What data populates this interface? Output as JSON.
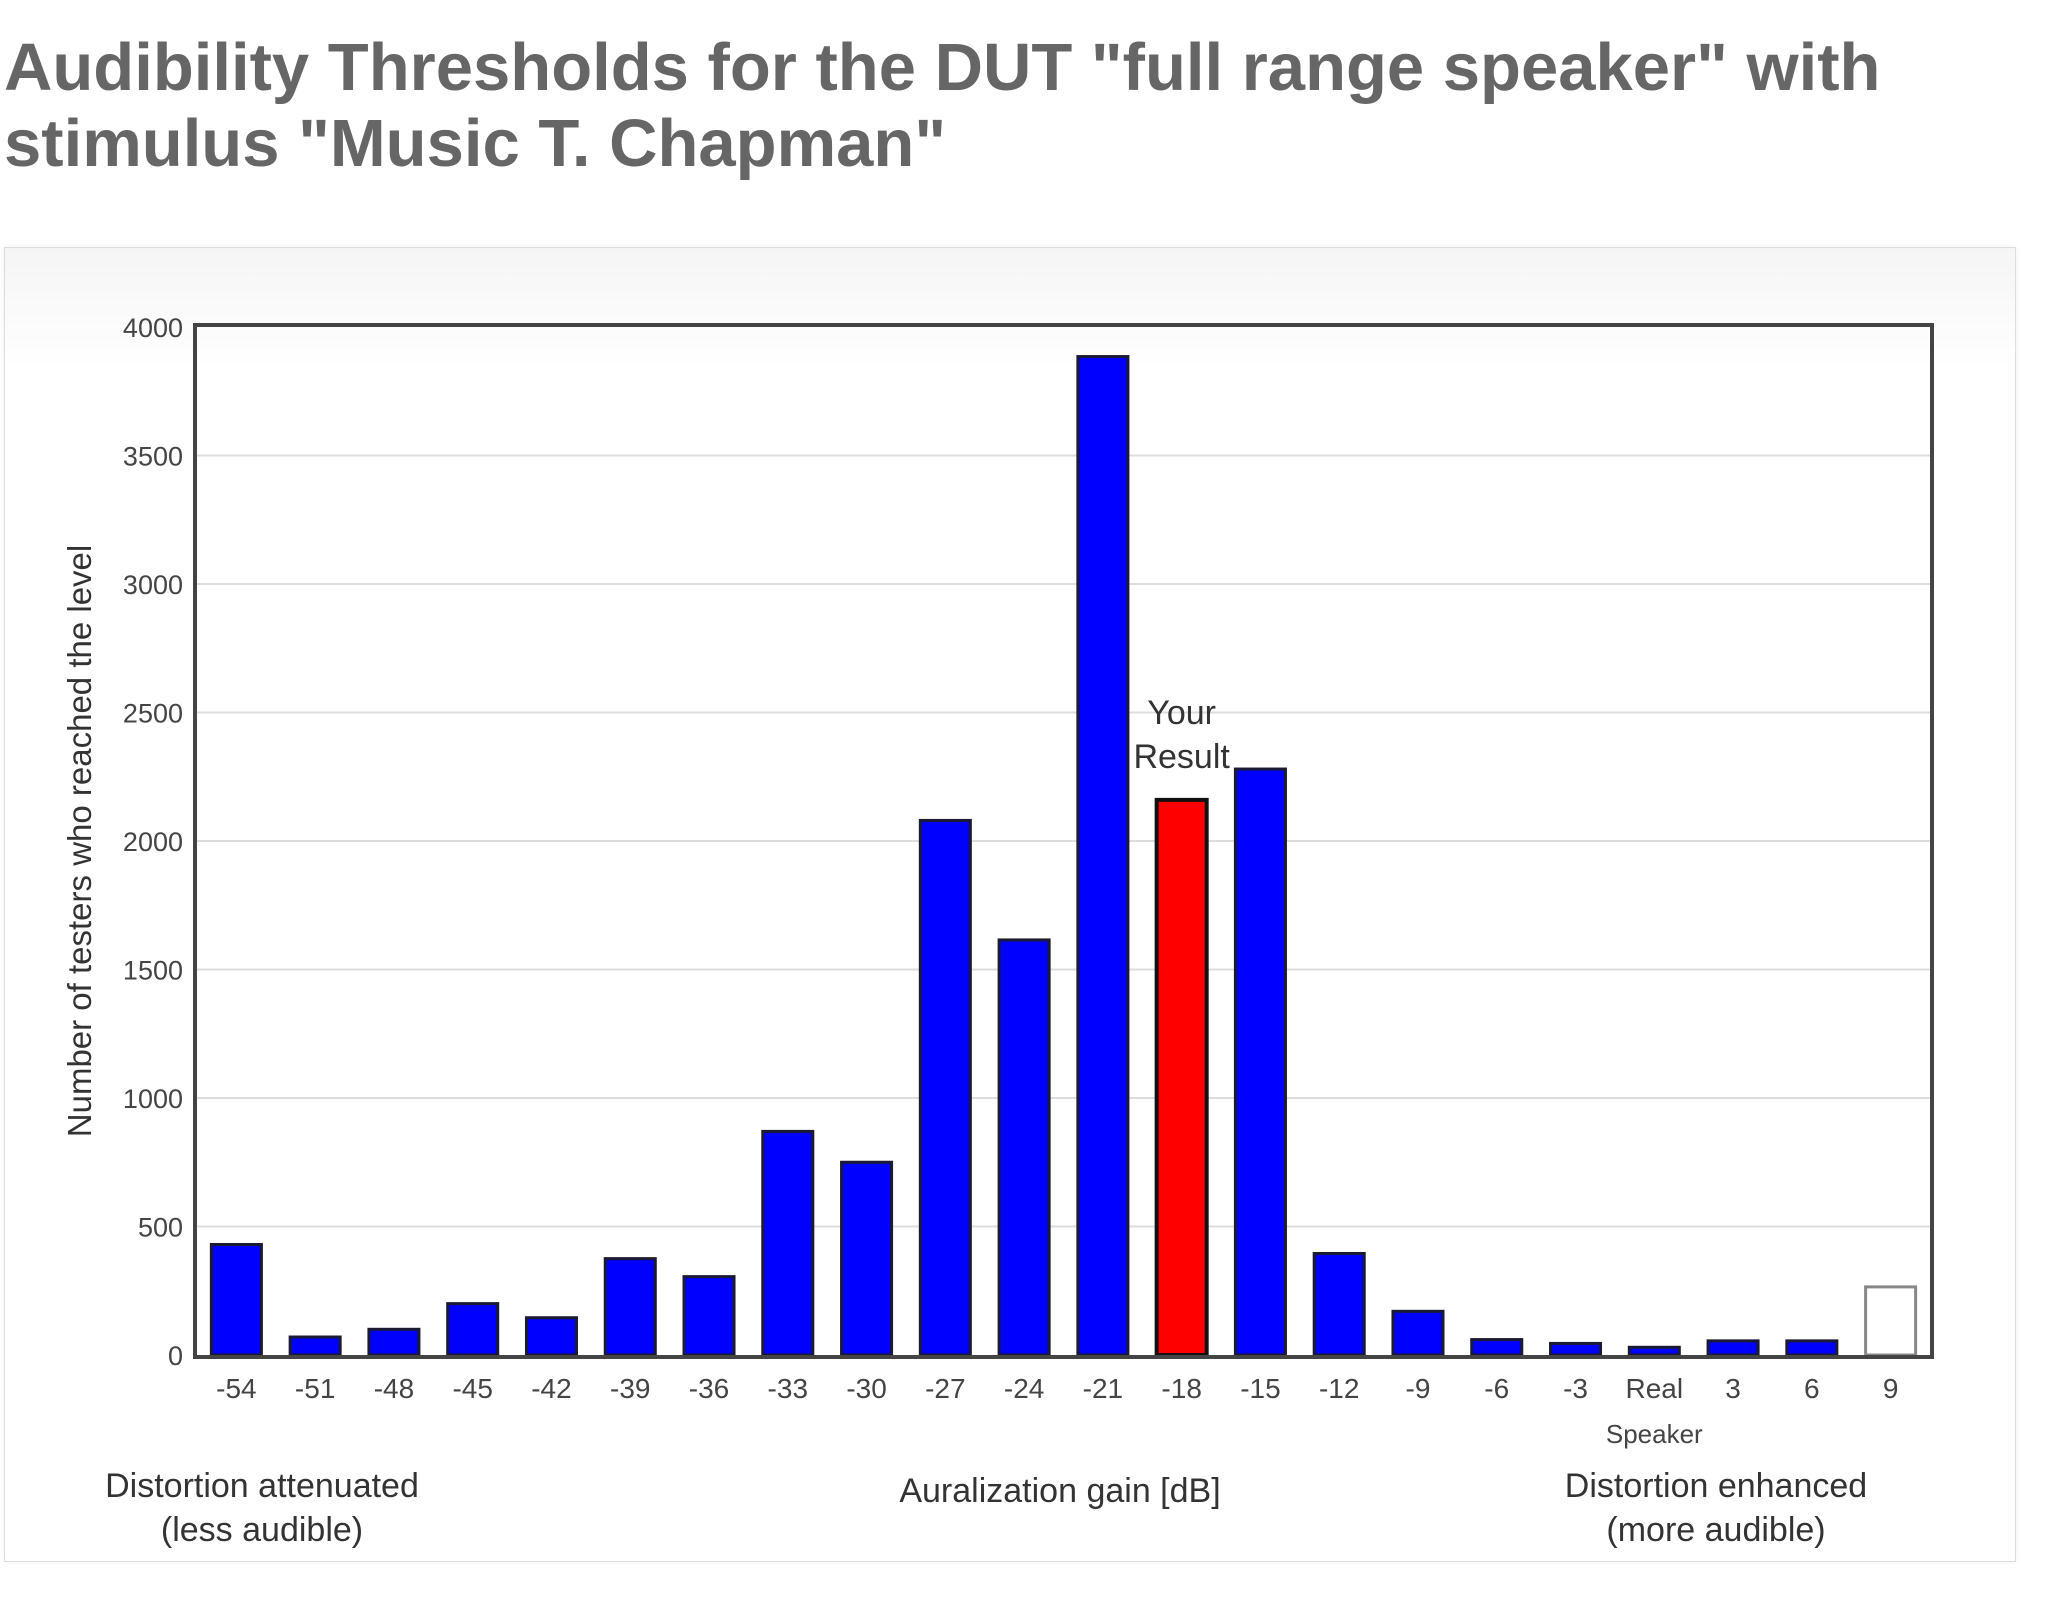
{
  "title": "Audibility Thresholds for the DUT \"full range speaker\" with stimulus \"Music T. Chapman\"",
  "colors": {
    "bar": "#0000ff",
    "highlight": "#ff0000",
    "bar_stroke": "#1a1a33",
    "empty_stroke": "#888888",
    "text": "#333333",
    "title": "#666666"
  },
  "chart_data": {
    "type": "bar",
    "title": "Audibility Thresholds for the DUT \"full range speaker\" with stimulus \"Music T. Chapman\"",
    "xlabel": "Auralization gain [dB]",
    "ylabel": "Number of testers who reached the level",
    "ylim": [
      0,
      4000
    ],
    "yticks": [
      0,
      500,
      1000,
      1500,
      2000,
      2500,
      3000,
      3500,
      4000
    ],
    "grid": true,
    "categories": [
      "-54",
      "-51",
      "-48",
      "-45",
      "-42",
      "-39",
      "-36",
      "-33",
      "-30",
      "-27",
      "-24",
      "-21",
      "-18",
      "-15",
      "-12",
      "-9",
      "-6",
      "-3",
      "Real\nSpeaker",
      "3",
      "6",
      "9"
    ],
    "values": [
      430,
      70,
      100,
      200,
      145,
      375,
      305,
      870,
      750,
      2080,
      1615,
      3885,
      2160,
      2280,
      395,
      170,
      60,
      45,
      30,
      55,
      55,
      265
    ],
    "highlight_index": 12,
    "empty_index": 21,
    "highlight_label": "Your\nResult",
    "left_annotation": "Distortion attenuated\n(less audible)",
    "right_annotation": "Distortion enhanced\n(more audible)"
  }
}
